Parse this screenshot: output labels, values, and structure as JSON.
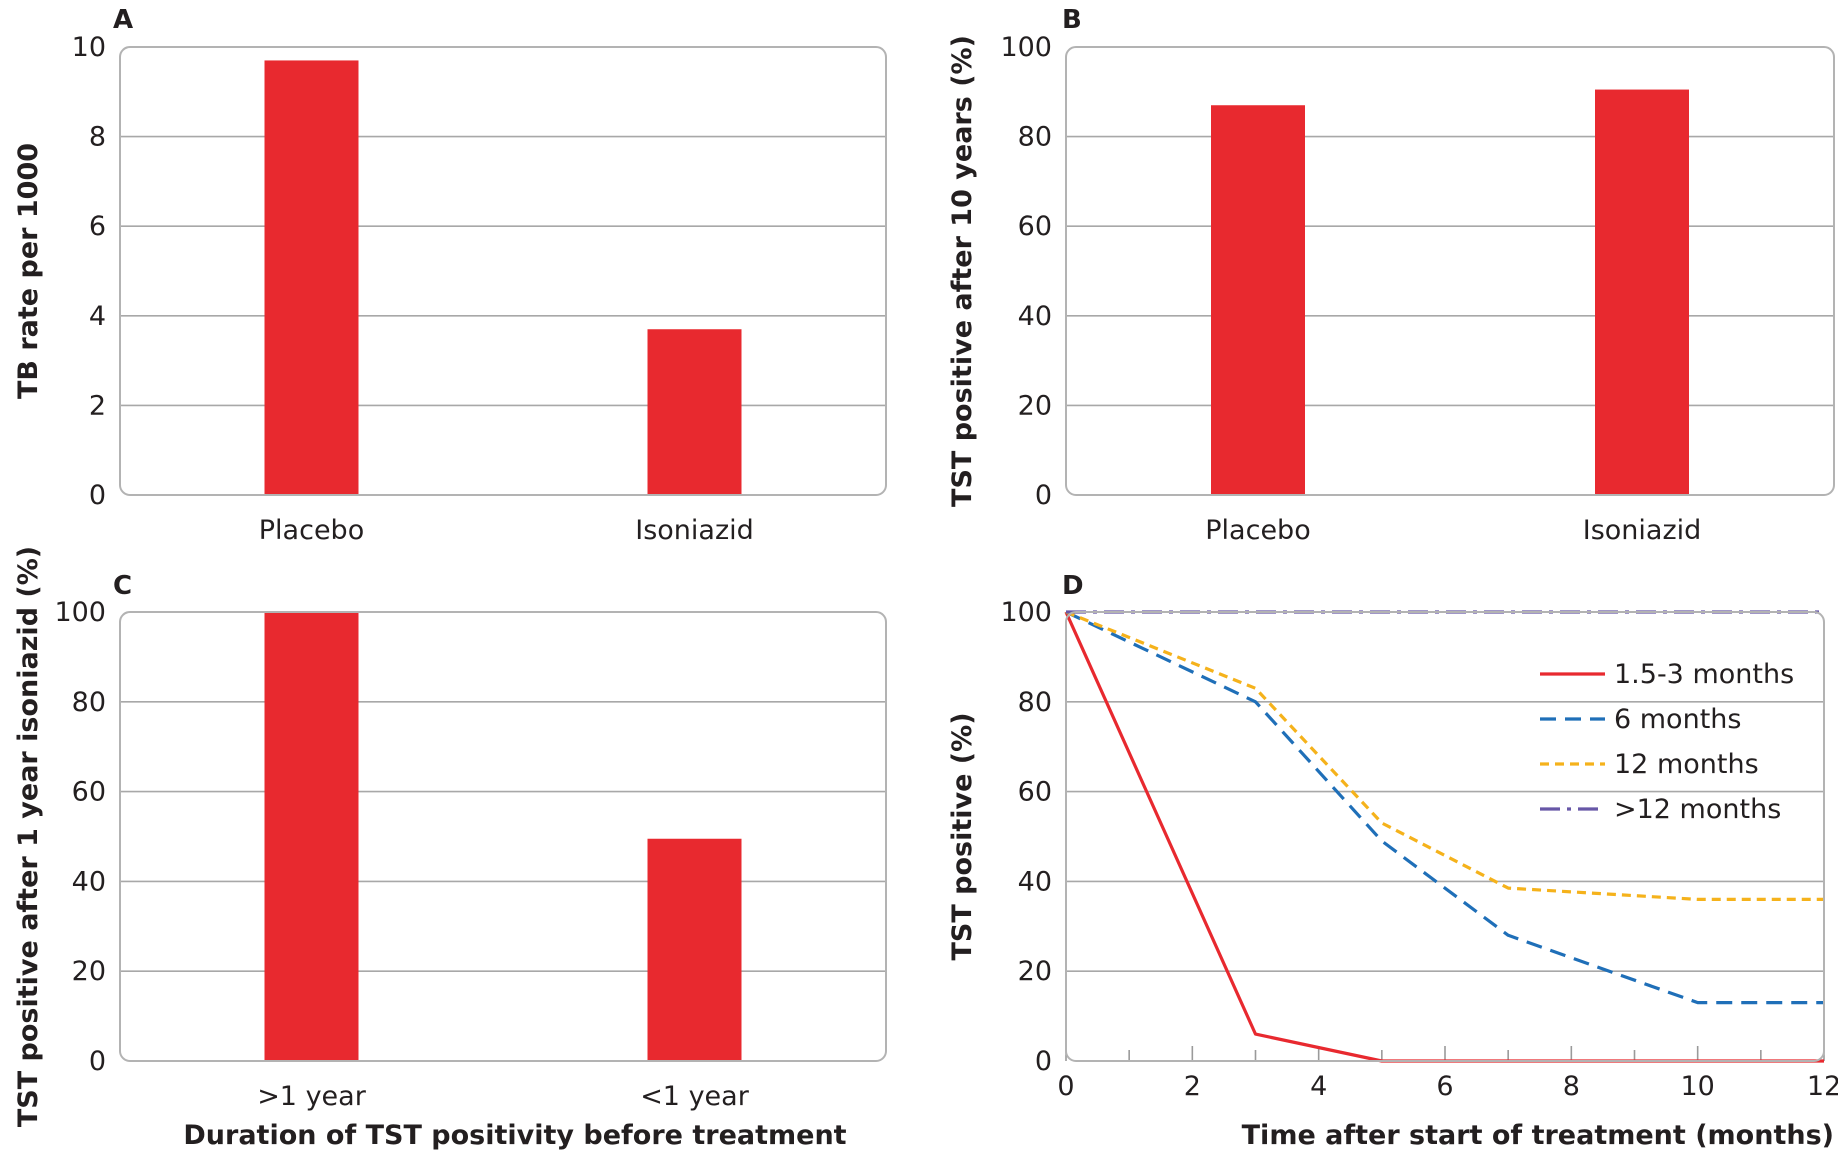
{
  "chart_data": [
    {
      "id": "A",
      "type": "bar",
      "panel_label": "A",
      "categories": [
        "Placebo",
        "Isoniazid"
      ],
      "values": [
        9.7,
        3.7
      ],
      "ylabel": "TB rate per 1000",
      "xlabel": "",
      "ylim": [
        0,
        10
      ],
      "yticks": [
        0,
        2,
        4,
        6,
        8,
        10
      ],
      "grid": true,
      "color": "#e8292f"
    },
    {
      "id": "B",
      "type": "bar",
      "panel_label": "B",
      "categories": [
        "Placebo",
        "Isoniazid"
      ],
      "values": [
        87,
        90.5
      ],
      "ylabel": "TST positive after 10 years (%)",
      "xlabel": "",
      "ylim": [
        0,
        100
      ],
      "yticks": [
        0,
        20,
        40,
        60,
        80,
        100
      ],
      "grid": true,
      "color": "#e8292f"
    },
    {
      "id": "C",
      "type": "bar",
      "panel_label": "C",
      "categories": [
        ">1 year",
        "<1 year"
      ],
      "values": [
        100,
        49.5
      ],
      "ylabel": "TST positive after 1 year isoniazid (%)",
      "xlabel": "Duration of TST positivity before treatment",
      "ylim": [
        0,
        100
      ],
      "yticks": [
        0,
        20,
        40,
        60,
        80,
        100
      ],
      "grid": true,
      "color": "#e8292f"
    },
    {
      "id": "D",
      "type": "line",
      "panel_label": "D",
      "ylabel": "TST positive (%)",
      "xlabel": "Time after start of treatment (months)",
      "xlim": [
        0,
        12
      ],
      "ylim": [
        0,
        100
      ],
      "xticks": [
        0,
        2,
        4,
        6,
        8,
        10,
        12
      ],
      "xminor": [
        1,
        3,
        5,
        7,
        9,
        11
      ],
      "yticks": [
        0,
        20,
        40,
        60,
        80,
        100
      ],
      "grid": true,
      "legend_position": "top-right",
      "series": [
        {
          "name": "1.5-3 months",
          "color": "#e8292f",
          "dash": "solid",
          "x": [
            0,
            3,
            5,
            12
          ],
          "y": [
            100,
            6,
            0,
            0
          ]
        },
        {
          "name": "6 months",
          "color": "#1f6fb8",
          "dash": "dashed",
          "x": [
            0,
            3,
            5,
            7,
            10,
            12
          ],
          "y": [
            100,
            80,
            49,
            28,
            13,
            13
          ]
        },
        {
          "name": "12 months",
          "color": "#f5b21b",
          "dash": "short-dashed",
          "x": [
            0,
            3,
            5,
            7,
            10,
            12
          ],
          "y": [
            100,
            83,
            53,
            38.5,
            36,
            36
          ]
        },
        {
          "name": ">12 months",
          "color": "#6757a7",
          "dash": "dash-dot",
          "x": [
            0,
            12
          ],
          "y": [
            100,
            100
          ]
        }
      ]
    }
  ]
}
